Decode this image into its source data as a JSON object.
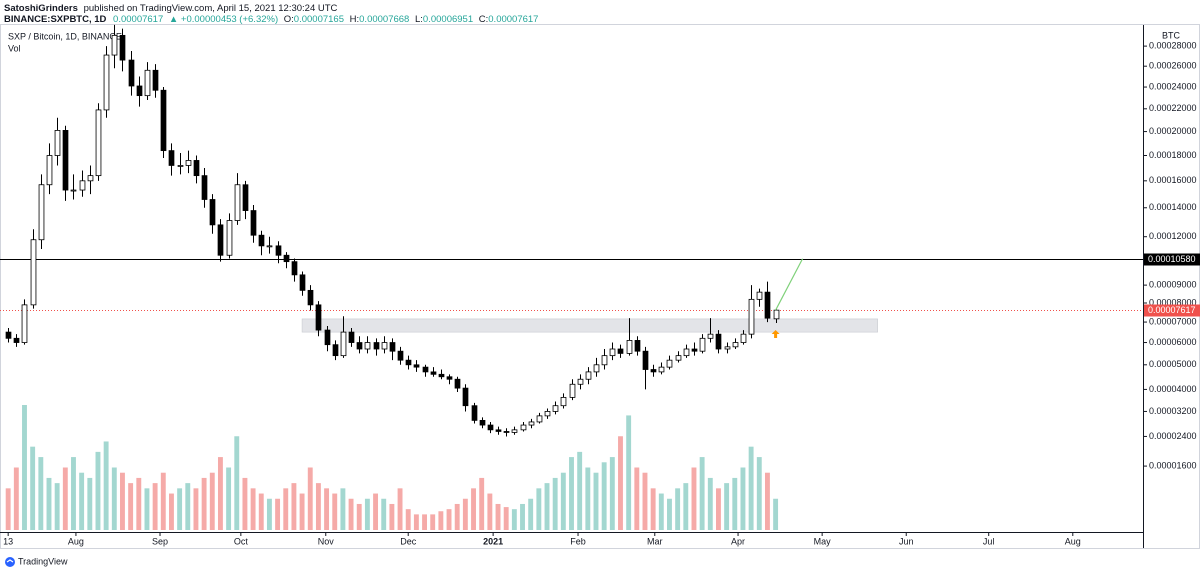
{
  "header": {
    "user": "SatoshiGrinders",
    "published": "published on TradingView.com, April 15, 2021 12:30:24 UTC",
    "symbol": "BINANCE:SXPBTC, 1D",
    "price": "0.00007617",
    "change": "▲ +0.00000453 (+6.32%)",
    "ohlc": [
      [
        "O:",
        "0.00007165"
      ],
      [
        "H:",
        "0.00007668"
      ],
      [
        "L:",
        "0.00006951"
      ],
      [
        "C:",
        "0.00007617"
      ]
    ]
  },
  "chart_data": {
    "type": "candlestick",
    "title": "SXP / Bitcoin, 1D, BINANCE",
    "volume_label": "Vol",
    "y_unit": "BTC",
    "scale": "sqrt",
    "ylim": [
      2.3e-06,
      0.000305
    ],
    "yticks": [
      {
        "value": 0.00028,
        "label": "0.00028000"
      },
      {
        "value": 0.00026,
        "label": "0.00026000"
      },
      {
        "value": 0.00024,
        "label": "0.00024000"
      },
      {
        "value": 0.00022,
        "label": "0.00022000"
      },
      {
        "value": 0.0002,
        "label": "0.00020000"
      },
      {
        "value": 0.00018,
        "label": "0.00018000"
      },
      {
        "value": 0.00016,
        "label": "0.00016000"
      },
      {
        "value": 0.00014,
        "label": "0.00014000"
      },
      {
        "value": 0.00012,
        "label": "0.00012000"
      },
      {
        "value": 9e-05,
        "label": "0.00009000"
      },
      {
        "value": 8e-05,
        "label": "0.00008000"
      },
      {
        "value": 7e-05,
        "label": "0.00007000"
      },
      {
        "value": 6e-05,
        "label": "0.00006000"
      },
      {
        "value": 5e-05,
        "label": "0.00005000"
      },
      {
        "value": 4e-05,
        "label": "0.00004000"
      },
      {
        "value": 3.2e-05,
        "label": "0.00003200"
      },
      {
        "value": 2.4e-05,
        "label": "0.00002400"
      },
      {
        "value": 1.6e-05,
        "label": "0.00001600"
      }
    ],
    "xlim": [
      0,
      140
    ],
    "xticks": [
      {
        "value": 1,
        "label": "13"
      },
      {
        "value": 9.3,
        "label": "Aug"
      },
      {
        "value": 19.6,
        "label": "Sep"
      },
      {
        "value": 29.5,
        "label": "Oct"
      },
      {
        "value": 39.9,
        "label": "Nov"
      },
      {
        "value": 50,
        "label": "Dec"
      },
      {
        "value": 60.4,
        "label": "2021"
      },
      {
        "value": 70.8,
        "label": "Feb"
      },
      {
        "value": 80.2,
        "label": "Mar"
      },
      {
        "value": 90.4,
        "label": "Apr"
      },
      {
        "value": 100.7,
        "label": "May"
      },
      {
        "value": 111,
        "label": "Jun"
      },
      {
        "value": 121.1,
        "label": "Jul"
      },
      {
        "value": 131.4,
        "label": "Aug"
      }
    ],
    "candles": [
      [
        6.5e-05,
        6.7e-05,
        6e-05,
        6.2e-05
      ],
      [
        6.2e-05,
        6.4e-05,
        5.8e-05,
        6e-05
      ],
      [
        6e-05,
        8.2e-05,
        5.9e-05,
        7.9e-05
      ],
      [
        7.9e-05,
        0.000125,
        7.7e-05,
        0.000118
      ],
      [
        0.000118,
        0.000165,
        0.000112,
        0.000157
      ],
      [
        0.000157,
        0.00019,
        0.00015,
        0.00018
      ],
      [
        0.00018,
        0.000212,
        0.000172,
        0.000201
      ],
      [
        0.000201,
        0.000205,
        0.000145,
        0.000153
      ],
      [
        0.000153,
        0.000165,
        0.000146,
        0.000153
      ],
      [
        0.000153,
        0.000168,
        0.000148,
        0.00016
      ],
      [
        0.00016,
        0.000172,
        0.00015,
        0.000164
      ],
      [
        0.000164,
        0.000225,
        0.00016,
        0.000219
      ],
      [
        0.000219,
        0.00028,
        0.000212,
        0.000271
      ],
      [
        0.000271,
        0.000302,
        0.000258,
        0.000291
      ],
      [
        0.000291,
        0.000298,
        0.000255,
        0.000266
      ],
      [
        0.000266,
        0.000275,
        0.000232,
        0.000241
      ],
      [
        0.000241,
        0.00025,
        0.000222,
        0.000232
      ],
      [
        0.000232,
        0.000264,
        0.000228,
        0.000256
      ],
      [
        0.000256,
        0.000262,
        0.00023,
        0.000237
      ],
      [
        0.000237,
        0.00024,
        0.000178,
        0.000184
      ],
      [
        0.000184,
        0.00019,
        0.000164,
        0.000172
      ],
      [
        0.000172,
        0.000182,
        0.000165,
        0.000172
      ],
      [
        0.000172,
        0.000184,
        0.000166,
        0.000176
      ],
      [
        0.000176,
        0.00018,
        0.000158,
        0.000164
      ],
      [
        0.000164,
        0.00017,
        0.00014,
        0.000146
      ],
      [
        0.000146,
        0.00015,
        0.000122,
        0.000128
      ],
      [
        0.000128,
        0.000132,
        0.000104,
        0.000108
      ],
      [
        0.000108,
        0.000136,
        0.000106,
        0.000131
      ],
      [
        0.000131,
        0.000166,
        0.000128,
        0.000157
      ],
      [
        0.000157,
        0.00016,
        0.000132,
        0.000138
      ],
      [
        0.000138,
        0.000142,
        0.000116,
        0.000121
      ],
      [
        0.000121,
        0.000124,
        0.000108,
        0.000114
      ],
      [
        0.000114,
        0.00012,
        0.000109,
        0.000114
      ],
      [
        0.000114,
        0.000117,
        0.000103,
        0.000108
      ],
      [
        0.000108,
        0.00011,
        0.0001,
        0.000104
      ],
      [
        0.000104,
        0.000106,
        9.2e-05,
        9.6e-05
      ],
      [
        9.6e-05,
        9.8e-05,
        8.4e-05,
        8.7e-05
      ],
      [
        8.7e-05,
        9e-05,
        7.6e-05,
        7.9e-05
      ],
      [
        7.9e-05,
        8.1e-05,
        6.3e-05,
        6.6e-05
      ],
      [
        6.6e-05,
        6.8e-05,
        5.6e-05,
        5.9e-05
      ],
      [
        5.9e-05,
        6.1e-05,
        5.2e-05,
        5.4e-05
      ],
      [
        5.4e-05,
        7.3e-05,
        5.3e-05,
        6.5e-05
      ],
      [
        6.5e-05,
        6.7e-05,
        5.8e-05,
        6e-05
      ],
      [
        6e-05,
        6.3e-05,
        5.5e-05,
        5.7e-05
      ],
      [
        5.7e-05,
        6.3e-05,
        5.5e-05,
        6e-05
      ],
      [
        6e-05,
        6.2e-05,
        5.4e-05,
        5.7e-05
      ],
      [
        5.7e-05,
        6.3e-05,
        5.5e-05,
        6e-05
      ],
      [
        6e-05,
        6.2e-05,
        5.2e-05,
        5.6e-05
      ],
      [
        5.6e-05,
        5.8e-05,
        5e-05,
        5.2e-05
      ],
      [
        5.2e-05,
        5.4e-05,
        4.8e-05,
        5e-05
      ],
      [
        5e-05,
        5.2e-05,
        4.7e-05,
        4.9e-05
      ],
      [
        4.9e-05,
        5e-05,
        4.5e-05,
        4.7e-05
      ],
      [
        4.7e-05,
        4.9e-05,
        4.5e-05,
        4.6e-05
      ],
      [
        4.6e-05,
        4.8e-05,
        4.4e-05,
        4.5e-05
      ],
      [
        4.5e-05,
        4.6e-05,
        4.2e-05,
        4.4e-05
      ],
      [
        4.4e-05,
        4.5e-05,
        3.9e-05,
        4.05e-05
      ],
      [
        4.05e-05,
        4.2e-05,
        3.2e-05,
        3.4e-05
      ],
      [
        3.4e-05,
        3.5e-05,
        2.8e-05,
        2.9e-05
      ],
      [
        2.9e-05,
        3e-05,
        2.65e-05,
        2.75e-05
      ],
      [
        2.75e-05,
        2.85e-05,
        2.5e-05,
        2.6e-05
      ],
      [
        2.6e-05,
        2.7e-05,
        2.45e-05,
        2.55e-05
      ],
      [
        2.55e-05,
        2.65e-05,
        2.4e-05,
        2.52e-05
      ],
      [
        2.52e-05,
        2.7e-05,
        2.45e-05,
        2.6e-05
      ],
      [
        2.6e-05,
        2.85e-05,
        2.55e-05,
        2.75e-05
      ],
      [
        2.75e-05,
        2.95e-05,
        2.65e-05,
        2.85e-05
      ],
      [
        2.85e-05,
        3.15e-05,
        2.8e-05,
        3.05e-05
      ],
      [
        3.05e-05,
        3.3e-05,
        2.95e-05,
        3.2e-05
      ],
      [
        3.2e-05,
        3.55e-05,
        3.1e-05,
        3.4e-05
      ],
      [
        3.4e-05,
        3.85e-05,
        3.3e-05,
        3.7e-05
      ],
      [
        3.7e-05,
        4.4e-05,
        3.6e-05,
        4.2e-05
      ],
      [
        4.2e-05,
        4.6e-05,
        4e-05,
        4.4e-05
      ],
      [
        4.4e-05,
        4.9e-05,
        4.2e-05,
        4.7e-05
      ],
      [
        4.7e-05,
        5.3e-05,
        4.5e-05,
        5e-05
      ],
      [
        5e-05,
        5.7e-05,
        4.8e-05,
        5.4e-05
      ],
      [
        5.4e-05,
        6e-05,
        5.2e-05,
        5.7e-05
      ],
      [
        5.7e-05,
        5.9e-05,
        5.3e-05,
        5.5e-05
      ],
      [
        5.5e-05,
        7.2e-05,
        5.4e-05,
        6.1e-05
      ],
      [
        6.1e-05,
        6.3e-05,
        5.4e-05,
        5.6e-05
      ],
      [
        5.6e-05,
        5.8e-05,
        4e-05,
        4.8e-05
      ],
      [
        4.8e-05,
        5e-05,
        4.5e-05,
        4.7e-05
      ],
      [
        4.7e-05,
        5.1e-05,
        4.6e-05,
        4.9e-05
      ],
      [
        4.9e-05,
        5.4e-05,
        4.8e-05,
        5.2e-05
      ],
      [
        5.2e-05,
        5.6e-05,
        5.1e-05,
        5.4e-05
      ],
      [
        5.4e-05,
        5.9e-05,
        5.3e-05,
        5.7e-05
      ],
      [
        5.7e-05,
        6e-05,
        5.4e-05,
        5.6e-05
      ],
      [
        5.6e-05,
        6.4e-05,
        5.5e-05,
        6.2e-05
      ],
      [
        6.2e-05,
        7.2e-05,
        6e-05,
        6.4e-05
      ],
      [
        6.4e-05,
        6.6e-05,
        5.5e-05,
        5.7e-05
      ],
      [
        5.7e-05,
        6e-05,
        5.5e-05,
        5.8e-05
      ],
      [
        5.8e-05,
        6.2e-05,
        5.7e-05,
        6e-05
      ],
      [
        6e-05,
        6.6e-05,
        5.9e-05,
        6.4e-05
      ],
      [
        6.4e-05,
        9e-05,
        6.2e-05,
        8.2e-05
      ],
      [
        8.2e-05,
        8.8e-05,
        7.8e-05,
        8.6e-05
      ],
      [
        8.6e-05,
        9.2e-05,
        7e-05,
        7.2e-05
      ],
      [
        7.165e-05,
        7.668e-05,
        6.951e-05,
        7.617e-05
      ]
    ],
    "volume": [
      40,
      60,
      120,
      80,
      70,
      50,
      45,
      60,
      70,
      55,
      50,
      75,
      85,
      60,
      55,
      45,
      50,
      40,
      45,
      55,
      35,
      40,
      45,
      40,
      50,
      55,
      70,
      60,
      90,
      50,
      40,
      35,
      30,
      30,
      40,
      45,
      35,
      60,
      45,
      40,
      35,
      40,
      30,
      25,
      30,
      35,
      30,
      25,
      40,
      20,
      15,
      15,
      15,
      18,
      20,
      25,
      30,
      40,
      50,
      35,
      25,
      22,
      20,
      25,
      30,
      40,
      45,
      50,
      55,
      70,
      75,
      60,
      55,
      65,
      70,
      90,
      110,
      60,
      55,
      40,
      35,
      30,
      40,
      45,
      60,
      70,
      50,
      40,
      45,
      50,
      60,
      80,
      70,
      55,
      30
    ],
    "up_color": "#ffffff",
    "down_color": "#000000",
    "volume_up_color": "#a3d7d0",
    "volume_down_color": "#f5aaa8",
    "lines": [
      {
        "value": 0.0001058,
        "label": "0.00010580",
        "color": "#000000",
        "dashed": false
      },
      {
        "value": 7.617e-05,
        "label": "0.00007617",
        "color": "#f0514c",
        "dashed": true
      }
    ],
    "zone": {
      "y": [
        6.5e-05,
        7.16e-05
      ],
      "x": [
        37,
        107.5
      ],
      "color": "#e3e4e8"
    },
    "projection": {
      "x": [
        95,
        98.3
      ],
      "y": [
        7.617e-05,
        0.0001058
      ],
      "color": "#7fd17a"
    }
  },
  "footer": {
    "brand": "TradingView"
  }
}
